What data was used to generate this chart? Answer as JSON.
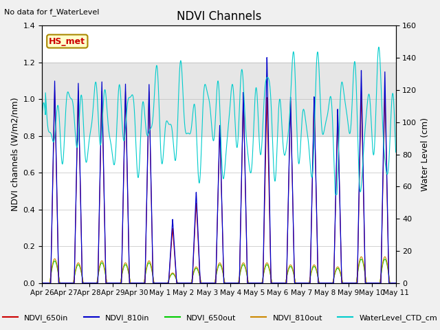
{
  "title": "NDVI Channels",
  "ylabel_left": "NDVI channels (W/m2/nm)",
  "ylabel_right": "Water Level (cm)",
  "ylim_left": [
    0,
    1.4
  ],
  "ylim_right": [
    0,
    160
  ],
  "note_text": "No data for f_WaterLevel",
  "annotation_text": "HS_met",
  "shade_ymin": 0.8,
  "shade_ymax": 1.2,
  "legend_entries": [
    "NDVI_650in",
    "NDVI_810in",
    "NDVI_650out",
    "NDVI_810out",
    "WaterLevel_CTD_cm"
  ],
  "legend_colors": [
    "#cc0000",
    "#0000cc",
    "#00cc00",
    "#cc8800",
    "#00cccc"
  ],
  "line_colors": {
    "NDVI_650in": "#cc0000",
    "NDVI_810in": "#0000cc",
    "NDVI_650out": "#00cc00",
    "NDVI_810out": "#cc8800",
    "WaterLevel_CTD_cm": "#00cccc"
  },
  "x_tick_labels": [
    "Apr 26",
    "Apr 27",
    "Apr 28",
    "Apr 29",
    "Apr 30",
    "May 1",
    "May 2",
    "May 3",
    "May 4",
    "May 5",
    "May 6",
    "May 7",
    "May 8",
    "May 9",
    "May 10",
    "May 11"
  ],
  "x_tick_positions": [
    0,
    1,
    2,
    3,
    4,
    5,
    6,
    7,
    8,
    9,
    10,
    11,
    12,
    13,
    14,
    15
  ],
  "background_color": "#f0f0f0",
  "plot_bg_color": "#ffffff",
  "ndvi_in_peak_scales": [
    1.05,
    1.05,
    1.05,
    1.05,
    1.05,
    0.3,
    0.44,
    0.85,
    1.02,
    1.02,
    1.0,
    1.0,
    0.92,
    1.05,
    1.05
  ],
  "ndvi_810_peak_scales": [
    1.1,
    1.09,
    1.1,
    1.09,
    1.09,
    0.35,
    0.5,
    0.87,
    1.05,
    1.24,
    1.02,
    1.02,
    0.95,
    1.16,
    1.15
  ],
  "ndvi_out_peak_scales": [
    0.12,
    0.1,
    0.11,
    0.1,
    0.11,
    0.05,
    0.08,
    0.1,
    0.1,
    0.1,
    0.09,
    0.09,
    0.08,
    0.13,
    0.13
  ],
  "water_level_base": 100,
  "water_level_amp1": 30,
  "water_level_amp2": 20,
  "water_level_freq1": 1.9,
  "water_level_freq2": 0.7
}
